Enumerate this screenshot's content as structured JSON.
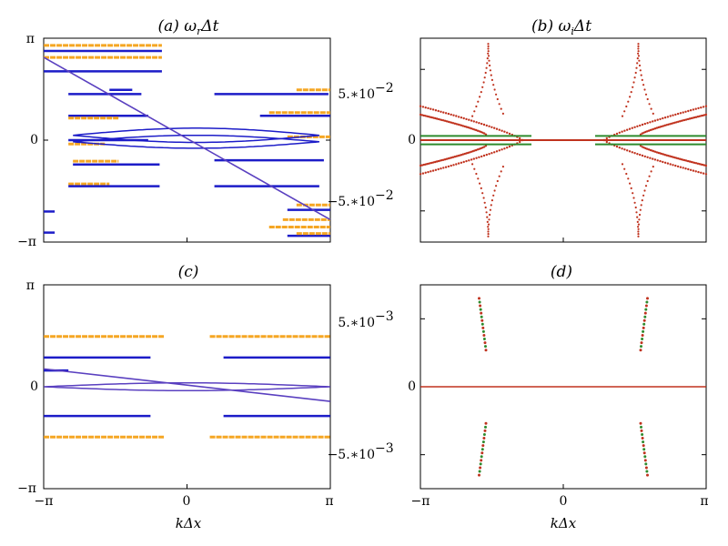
{
  "colors": {
    "blue": "#1c1cc8",
    "purple": "#5a40c0",
    "orange": "#f5a623",
    "red": "#c0321e",
    "green": "#2e8b2e",
    "axis": "#000000"
  },
  "chart_data": [
    {
      "id": "a",
      "type": "scatter",
      "title": "(a) ωrΔt",
      "xlabel": "",
      "ylabel": "",
      "xlim": [
        -3.14159,
        3.14159
      ],
      "ylim": [
        -3.14159,
        3.14159
      ],
      "yticks": [
        {
          "value": -3.14159,
          "label": "−π"
        },
        {
          "value": 0,
          "label": "0"
        },
        {
          "value": 3.14159,
          "label": "π"
        }
      ],
      "xticks": [],
      "segments": [
        {
          "c": "orange",
          "x": [
            -3.14,
            -0.55
          ],
          "y": 2.92
        },
        {
          "c": "blue",
          "x": [
            -3.14,
            -0.55
          ],
          "y": 2.75
        },
        {
          "c": "orange",
          "x": [
            -3.14,
            -0.55
          ],
          "y": 2.55
        },
        {
          "c": "blue",
          "x": [
            -3.14,
            -0.55
          ],
          "y": 2.12
        },
        {
          "c": "blue",
          "x": [
            -2.6,
            -1.0
          ],
          "y": 1.42
        },
        {
          "c": "blue",
          "x": [
            -1.7,
            -1.2
          ],
          "y": 1.55
        },
        {
          "c": "blue",
          "x": [
            -2.6,
            -0.85
          ],
          "y": 0.75
        },
        {
          "c": "orange",
          "x": [
            -2.6,
            -1.5
          ],
          "y": 0.68
        },
        {
          "c": "blue",
          "x": [
            -2.6,
            -0.85
          ],
          "y": 0.0
        },
        {
          "c": "orange",
          "x": [
            -2.6,
            -1.8
          ],
          "y": -0.12
        },
        {
          "c": "orange",
          "x": [
            -2.5,
            -1.5
          ],
          "y": -0.65
        },
        {
          "c": "blue",
          "x": [
            -2.5,
            -0.6
          ],
          "y": -0.75
        },
        {
          "c": "orange",
          "x": [
            -2.6,
            -1.7
          ],
          "y": -1.35
        },
        {
          "c": "blue",
          "x": [
            -2.6,
            -0.6
          ],
          "y": -1.42
        },
        {
          "c": "blue",
          "x": [
            -3.14,
            -2.9
          ],
          "y": -2.2
        },
        {
          "c": "blue",
          "x": [
            -3.14,
            -2.9
          ],
          "y": -2.85
        },
        {
          "c": "blue",
          "x": [
            0.6,
            3.1
          ],
          "y": 1.42
        },
        {
          "c": "orange",
          "x": [
            2.4,
            3.14
          ],
          "y": 1.55
        },
        {
          "c": "orange",
          "x": [
            1.8,
            3.14
          ],
          "y": 0.85
        },
        {
          "c": "blue",
          "x": [
            1.6,
            3.14
          ],
          "y": 0.75
        },
        {
          "c": "orange",
          "x": [
            2.2,
            3.14
          ],
          "y": 0.1
        },
        {
          "c": "blue",
          "x": [
            0.6,
            3.0
          ],
          "y": -0.62
        },
        {
          "c": "blue",
          "x": [
            0.6,
            2.9
          ],
          "y": -1.42
        },
        {
          "c": "orange",
          "x": [
            2.4,
            3.14
          ],
          "y": -2.0
        },
        {
          "c": "blue",
          "x": [
            2.2,
            3.14
          ],
          "y": -2.15
        },
        {
          "c": "orange",
          "x": [
            2.1,
            3.14
          ],
          "y": -2.45
        },
        {
          "c": "orange",
          "x": [
            1.8,
            3.14
          ],
          "y": -2.68
        },
        {
          "c": "blue",
          "x": [
            2.2,
            3.14
          ],
          "y": -2.95
        },
        {
          "c": "orange",
          "x": [
            2.4,
            3.14
          ],
          "y": -2.88
        }
      ],
      "diagonal": {
        "c": "purple",
        "from": [
          -3.14,
          2.55
        ],
        "to": [
          3.14,
          -2.45
        ]
      },
      "loops": [
        {
          "c": "blue",
          "x": [
            -2.5,
            2.9
          ],
          "y": 0.15,
          "amp": 0.22
        },
        {
          "c": "blue",
          "x": [
            -2.5,
            2.9
          ],
          "y": -0.05,
          "amp": 0.2
        }
      ]
    },
    {
      "id": "b",
      "type": "scatter",
      "title": "(b) ωiΔt",
      "xlabel": "",
      "ylabel": "",
      "xlim": [
        -3.14159,
        3.14159
      ],
      "ylim": [
        -0.072,
        0.072
      ],
      "yticks": [
        {
          "value": -0.05,
          "label": "−5.∗10"
        },
        {
          "value": 0,
          "label": "0"
        },
        {
          "value": 0.05,
          "label": "5.∗10"
        }
      ],
      "ytick_exponent": "−2",
      "xticks": [],
      "branches": [
        {
          "c": "red",
          "x0": 0.9,
          "x1": 3.14,
          "y0": 0.0,
          "y1": 0.024
        },
        {
          "c": "red",
          "x0": 0.9,
          "x1": 3.14,
          "y0": 0.0,
          "y1": -0.024
        },
        {
          "c": "red",
          "x0": 1.7,
          "x1": 3.14,
          "y0": 0.004,
          "y1": 0.018
        },
        {
          "c": "red",
          "x0": 1.7,
          "x1": 3.14,
          "y0": -0.004,
          "y1": -0.018
        }
      ],
      "spikes": [
        {
          "c": "red",
          "x": 1.65,
          "peak": 0.068
        },
        {
          "c": "red",
          "x": -1.65,
          "peak": 0.068
        }
      ],
      "green_band": {
        "c": "green",
        "x": [
          0.7,
          3.14
        ],
        "y": 0.003
      }
    },
    {
      "id": "c",
      "type": "scatter",
      "title": "(c)",
      "xlabel": "kΔx",
      "ylabel": "",
      "xlim": [
        -3.14159,
        3.14159
      ],
      "ylim": [
        -3.14159,
        3.14159
      ],
      "yticks": [
        {
          "value": -3.14159,
          "label": "−π"
        },
        {
          "value": 0,
          "label": "0"
        },
        {
          "value": 3.14159,
          "label": "π"
        }
      ],
      "xticks": [
        {
          "value": -3.14159,
          "label": "−π"
        },
        {
          "value": 0,
          "label": "0"
        },
        {
          "value": 3.14159,
          "label": "π"
        }
      ],
      "segments": [
        {
          "c": "orange",
          "x": [
            -3.14,
            -0.5
          ],
          "y": 1.55
        },
        {
          "c": "orange",
          "x": [
            0.5,
            3.14
          ],
          "y": 1.55
        },
        {
          "c": "blue",
          "x": [
            -3.14,
            -0.8
          ],
          "y": 0.9
        },
        {
          "c": "blue",
          "x": [
            0.8,
            3.14
          ],
          "y": 0.9
        },
        {
          "c": "blue",
          "x": [
            -3.14,
            -2.6
          ],
          "y": 0.5
        },
        {
          "c": "blue",
          "x": [
            -3.14,
            -0.8
          ],
          "y": -0.9
        },
        {
          "c": "blue",
          "x": [
            0.8,
            3.14
          ],
          "y": -0.9
        },
        {
          "c": "orange",
          "x": [
            -3.14,
            -0.5
          ],
          "y": -1.55
        },
        {
          "c": "orange",
          "x": [
            0.5,
            3.14
          ],
          "y": -1.55
        }
      ],
      "diagonal": {
        "c": "purple",
        "from": [
          -3.14,
          0.55
        ],
        "to": [
          3.14,
          -0.45
        ]
      },
      "loops": [
        {
          "c": "purple",
          "x": [
            -3.14,
            3.14
          ],
          "y": 0.0,
          "amp": 0.12
        }
      ]
    },
    {
      "id": "d",
      "type": "scatter",
      "title": "(d)",
      "xlabel": "kΔx",
      "ylabel": "",
      "xlim": [
        -3.14159,
        3.14159
      ],
      "ylim": [
        -0.0075,
        0.0075
      ],
      "yticks": [
        {
          "value": -0.005,
          "label": "−5.∗10"
        },
        {
          "value": 0,
          "label": "0"
        },
        {
          "value": 0.005,
          "label": "5.∗10"
        }
      ],
      "ytick_exponent": "−3",
      "xticks": [
        {
          "value": -3.14159,
          "label": "−π"
        },
        {
          "value": 0,
          "label": "0"
        },
        {
          "value": 3.14159,
          "label": "π"
        }
      ],
      "clusters": [
        {
          "x": [
            -1.85,
            -1.7
          ],
          "y": [
            0.0065,
            0.0027
          ]
        },
        {
          "x": [
            -1.85,
            -1.7
          ],
          "y": [
            -0.0065,
            -0.0027
          ]
        },
        {
          "x": [
            1.85,
            1.7
          ],
          "y": [
            0.0065,
            0.0027
          ]
        },
        {
          "x": [
            1.85,
            1.7
          ],
          "y": [
            -0.0065,
            -0.0027
          ]
        }
      ],
      "zero_line": {
        "c": "red",
        "y": 0
      }
    }
  ]
}
